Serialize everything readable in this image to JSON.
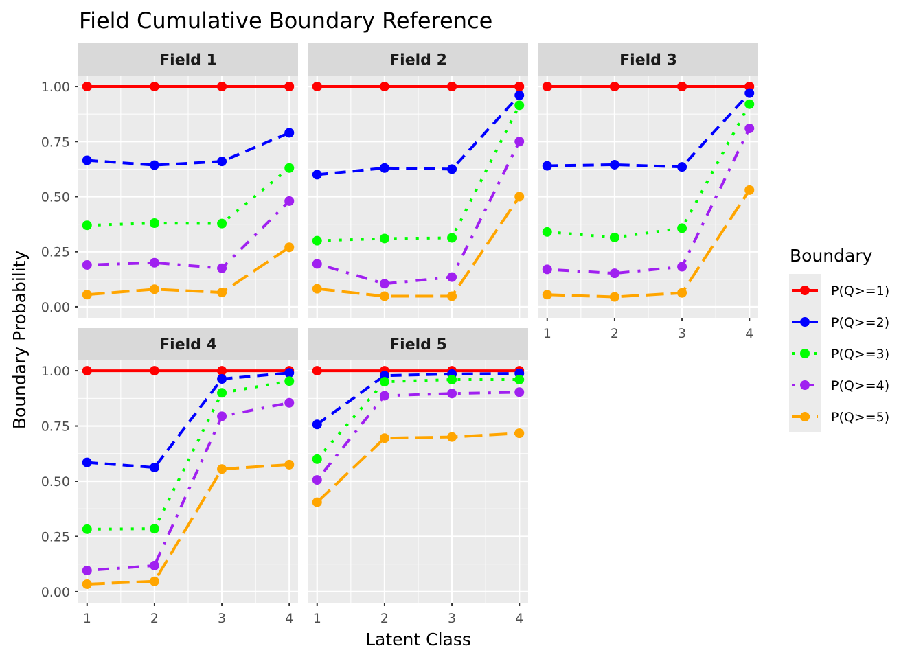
{
  "chart_data": {
    "type": "line",
    "title": "Field Cumulative Boundary Reference",
    "xlabel": "Latent Class",
    "ylabel": "Boundary Probability",
    "x": [
      1,
      2,
      3,
      4
    ],
    "x_tick_labels": [
      "1",
      "2",
      "3",
      "4"
    ],
    "y_ticks": [
      0,
      0.25,
      0.5,
      0.75,
      1
    ],
    "y_tick_labels": [
      "0.00",
      "0.25",
      "0.50",
      "0.75",
      "1.00"
    ],
    "ylim": [
      -0.05,
      1.05
    ],
    "grid": true,
    "legend": {
      "title": "Boundary",
      "position": "right",
      "entries": [
        "P(Q>=1)",
        "P(Q>=2)",
        "P(Q>=3)",
        "P(Q>=4)",
        "P(Q>=5)"
      ]
    },
    "series_styles": [
      {
        "name": "P(Q>=1)",
        "color": "#ff0000",
        "linetype": "solid"
      },
      {
        "name": "P(Q>=2)",
        "color": "#0000ff",
        "linetype": "dashed"
      },
      {
        "name": "P(Q>=3)",
        "color": "#00ff00",
        "linetype": "dotted"
      },
      {
        "name": "P(Q>=4)",
        "color": "#a020f0",
        "linetype": "dotdash"
      },
      {
        "name": "P(Q>=5)",
        "color": "#ffa500",
        "linetype": "longdash"
      }
    ],
    "facets": [
      {
        "label": "Field 1",
        "series": [
          {
            "name": "P(Q>=1)",
            "values": [
              1.0,
              1.0,
              1.0,
              1.0
            ]
          },
          {
            "name": "P(Q>=2)",
            "values": [
              0.665,
              0.643,
              0.66,
              0.79
            ]
          },
          {
            "name": "P(Q>=3)",
            "values": [
              0.37,
              0.38,
              0.378,
              0.63
            ]
          },
          {
            "name": "P(Q>=4)",
            "values": [
              0.19,
              0.2,
              0.175,
              0.48
            ]
          },
          {
            "name": "P(Q>=5)",
            "values": [
              0.055,
              0.08,
              0.065,
              0.27
            ]
          }
        ]
      },
      {
        "label": "Field 2",
        "series": [
          {
            "name": "P(Q>=1)",
            "values": [
              1.0,
              1.0,
              1.0,
              1.0
            ]
          },
          {
            "name": "P(Q>=2)",
            "values": [
              0.6,
              0.63,
              0.625,
              0.96
            ]
          },
          {
            "name": "P(Q>=3)",
            "values": [
              0.3,
              0.31,
              0.313,
              0.915
            ]
          },
          {
            "name": "P(Q>=4)",
            "values": [
              0.195,
              0.105,
              0.135,
              0.75
            ]
          },
          {
            "name": "P(Q>=5)",
            "values": [
              0.082,
              0.048,
              0.048,
              0.5
            ]
          }
        ]
      },
      {
        "label": "Field 3",
        "series": [
          {
            "name": "P(Q>=1)",
            "values": [
              1.0,
              1.0,
              1.0,
              1.0
            ]
          },
          {
            "name": "P(Q>=2)",
            "values": [
              0.64,
              0.645,
              0.635,
              0.97
            ]
          },
          {
            "name": "P(Q>=3)",
            "values": [
              0.34,
              0.315,
              0.357,
              0.92
            ]
          },
          {
            "name": "P(Q>=4)",
            "values": [
              0.17,
              0.152,
              0.182,
              0.81
            ]
          },
          {
            "name": "P(Q>=5)",
            "values": [
              0.055,
              0.045,
              0.063,
              0.53
            ]
          }
        ]
      },
      {
        "label": "Field 4",
        "series": [
          {
            "name": "P(Q>=1)",
            "values": [
              1.0,
              1.0,
              1.0,
              1.0
            ]
          },
          {
            "name": "P(Q>=2)",
            "values": [
              0.585,
              0.562,
              0.963,
              0.99
            ]
          },
          {
            "name": "P(Q>=3)",
            "values": [
              0.283,
              0.285,
              0.9,
              0.953
            ]
          },
          {
            "name": "P(Q>=4)",
            "values": [
              0.096,
              0.118,
              0.794,
              0.855
            ]
          },
          {
            "name": "P(Q>=5)",
            "values": [
              0.034,
              0.047,
              0.555,
              0.575
            ]
          }
        ]
      },
      {
        "label": "Field 5",
        "series": [
          {
            "name": "P(Q>=1)",
            "values": [
              1.0,
              1.0,
              1.0,
              1.0
            ]
          },
          {
            "name": "P(Q>=2)",
            "values": [
              0.757,
              0.978,
              0.985,
              0.988
            ]
          },
          {
            "name": "P(Q>=3)",
            "values": [
              0.6,
              0.95,
              0.96,
              0.96
            ]
          },
          {
            "name": "P(Q>=4)",
            "values": [
              0.506,
              0.887,
              0.897,
              0.903
            ]
          },
          {
            "name": "P(Q>=5)",
            "values": [
              0.405,
              0.695,
              0.7,
              0.717
            ]
          }
        ]
      }
    ]
  }
}
